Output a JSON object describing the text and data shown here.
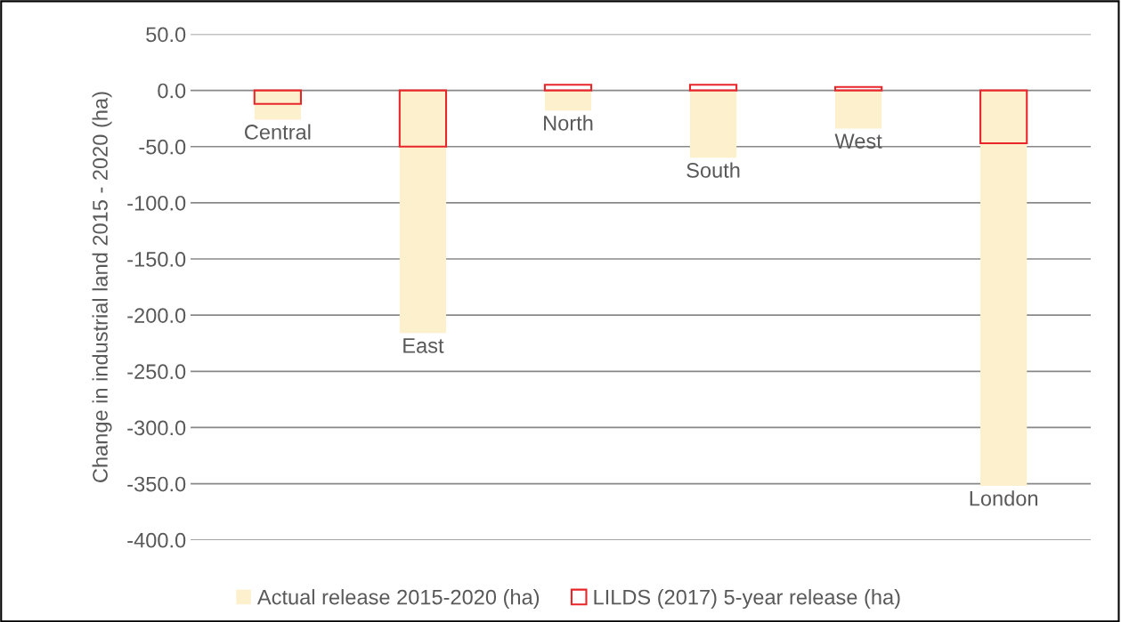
{
  "chart_data": {
    "type": "bar",
    "ylabel": "Change in industrial land 2015 - 2020 (ha)",
    "categories": [
      "Central",
      "East",
      "North",
      "South",
      "West",
      "London"
    ],
    "series": [
      {
        "name": "Actual release 2015-2020 (ha)",
        "color": "#fdf0cc",
        "values": [
          -26,
          -216,
          -18,
          -60,
          -34,
          -352
        ]
      },
      {
        "name": "LILDS (2017) 5-year release (ha)",
        "color": "#e8262a",
        "values": [
          -12,
          -50,
          5,
          5,
          3,
          -47
        ]
      }
    ],
    "ylim": [
      -400,
      50
    ],
    "yticks": [
      {
        "value": 50,
        "label": "50.0"
      },
      {
        "value": 0,
        "label": "0.0"
      },
      {
        "value": -50,
        "label": "-50.0"
      },
      {
        "value": -100,
        "label": "-100.0"
      },
      {
        "value": -150,
        "label": "-150.0"
      },
      {
        "value": -200,
        "label": "-200.0"
      },
      {
        "value": -250,
        "label": "-250.0"
      },
      {
        "value": -300,
        "label": "-300.0"
      },
      {
        "value": -350,
        "label": "-350.0"
      },
      {
        "value": -400,
        "label": "-400.0"
      }
    ],
    "grid": "y",
    "legend": "bottom",
    "tick_labels": "y"
  }
}
